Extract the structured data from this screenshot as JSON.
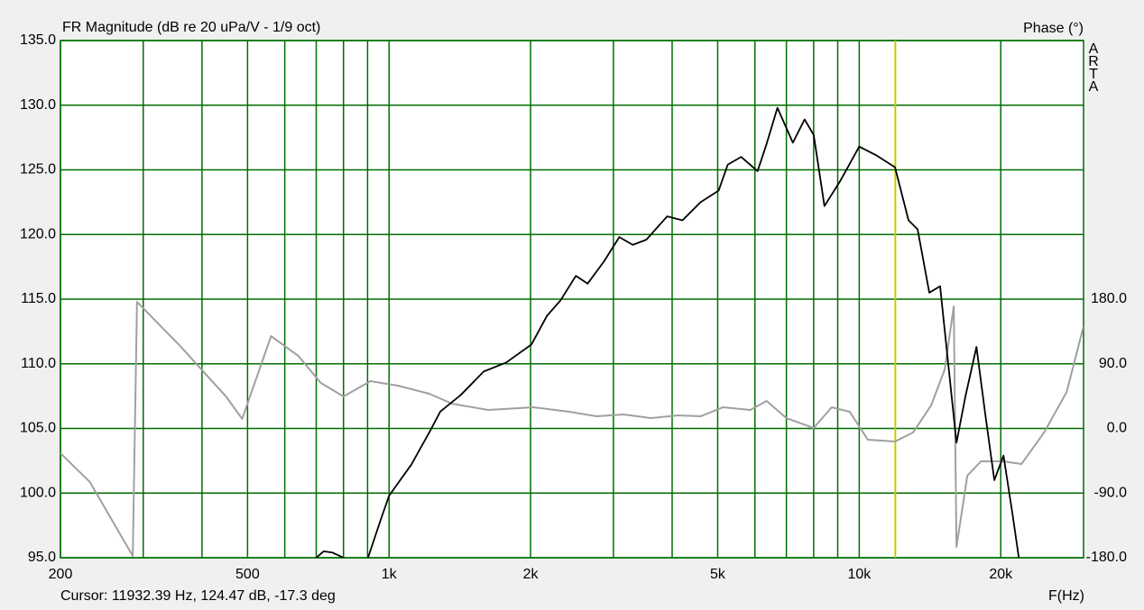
{
  "chart_data": {
    "type": "line",
    "title": "FR Magnitude (dB re 20 uPa/V - 1/9 oct)",
    "y2_label": "Phase (°)",
    "x_label": "F(Hz)",
    "watermark": "ARTA",
    "cursor_text": "Cursor: 11932.39 Hz, 124.47 dB, -17.3 deg",
    "cursor_x": 11932.39,
    "cursor_color": "#c8c800",
    "x_log": true,
    "grid": true,
    "grid_color": "#006e00",
    "xlim": [
      200,
      30000
    ],
    "xticks": [
      {
        "value": 200,
        "label": "200"
      },
      {
        "value": 300,
        "label": null
      },
      {
        "value": 400,
        "label": null
      },
      {
        "value": 500,
        "label": "500"
      },
      {
        "value": 600,
        "label": null
      },
      {
        "value": 700,
        "label": null
      },
      {
        "value": 800,
        "label": null
      },
      {
        "value": 900,
        "label": null
      },
      {
        "value": 1000,
        "label": "1k"
      },
      {
        "value": 2000,
        "label": "2k"
      },
      {
        "value": 3000,
        "label": null
      },
      {
        "value": 4000,
        "label": null
      },
      {
        "value": 5000,
        "label": "5k"
      },
      {
        "value": 6000,
        "label": null
      },
      {
        "value": 7000,
        "label": null
      },
      {
        "value": 8000,
        "label": null
      },
      {
        "value": 9000,
        "label": null
      },
      {
        "value": 10000,
        "label": "10k"
      },
      {
        "value": 20000,
        "label": "20k"
      }
    ],
    "ylim": [
      95,
      135
    ],
    "yticks": [
      {
        "value": 95,
        "label": "95.0"
      },
      {
        "value": 100,
        "label": "100.0"
      },
      {
        "value": 105,
        "label": "105.0"
      },
      {
        "value": 110,
        "label": "110.0"
      },
      {
        "value": 115,
        "label": "115.0"
      },
      {
        "value": 120,
        "label": "120.0"
      },
      {
        "value": 125,
        "label": "125.0"
      },
      {
        "value": 130,
        "label": "130.0"
      },
      {
        "value": 135,
        "label": "135.0"
      }
    ],
    "y2lim": [
      -180,
      540
    ],
    "y2ticks": [
      {
        "value": -180,
        "label": "-180.0"
      },
      {
        "value": -90,
        "label": "-90.0"
      },
      {
        "value": 0,
        "label": "0.0"
      },
      {
        "value": 90,
        "label": "90.0"
      },
      {
        "value": 180,
        "label": "180.0"
      }
    ],
    "series": [
      {
        "name": "Magnitude",
        "color": "#000000",
        "x": [
          700,
          726,
          758,
          800,
          850,
          902,
          955,
          1000,
          1115,
          1218,
          1285,
          1422,
          1589,
          1775,
          2009,
          2166,
          2315,
          2496,
          2644,
          2863,
          3088,
          3299,
          3526,
          3904,
          4208,
          4598,
          5024,
          5252,
          5610,
          6078,
          6352,
          6699,
          7226,
          7653,
          8001,
          8434,
          9132,
          10000,
          10901,
          11914,
          12732,
          13310,
          14094,
          14860,
          16101,
          16827,
          17757,
          18540,
          19380,
          20270,
          21180,
          21850
        ],
        "values": [
          95.0,
          95.5,
          95.4,
          95.0,
          null,
          95.0,
          97.7,
          99.8,
          102.2,
          104.7,
          106.3,
          107.6,
          109.4,
          110.1,
          111.5,
          113.7,
          114.9,
          116.8,
          116.2,
          117.9,
          119.8,
          119.2,
          119.6,
          121.4,
          121.1,
          122.5,
          123.4,
          125.4,
          126.0,
          124.9,
          127.0,
          129.8,
          127.1,
          128.9,
          127.7,
          122.2,
          124.2,
          126.8,
          126.1,
          125.2,
          121.1,
          120.4,
          115.5,
          116.0,
          103.9,
          107.5,
          111.3,
          106.1,
          101.0,
          102.9,
          98.4,
          95.0
        ]
      },
      {
        "name": "Phase",
        "color": "#a0a0a0",
        "axis": "y2",
        "x": [
          200,
          231,
          285,
          291,
          361,
          450,
          487,
          514,
          561,
          641,
          716,
          800,
          913,
          1043,
          1218,
          1361,
          1624,
          2027,
          2420,
          2763,
          3156,
          3606,
          4118,
          4598,
          5136,
          5866,
          6352,
          7000,
          8001,
          8738,
          9547,
          10433,
          11914,
          13019,
          14220,
          15201,
          15886,
          16101,
          16980,
          18148,
          20270,
          22140,
          24730,
          27620,
          30000
        ],
        "values": [
          -34.5,
          -74.6,
          -177.5,
          176.2,
          113.5,
          44.5,
          13.2,
          57.1,
          128.6,
          101.0,
          63.4,
          44.5,
          65.9,
          59.6,
          48.3,
          34.5,
          25.7,
          29.5,
          23.2,
          16.9,
          19.5,
          14.4,
          18.2,
          16.9,
          29.5,
          25.7,
          38.3,
          14.4,
          0.6,
          29.5,
          23.2,
          -15.7,
          -18.2,
          -5.6,
          32.0,
          82.2,
          170.0,
          -164.9,
          -65.8,
          -45.8,
          -45.8,
          -49.5,
          -5.6,
          50.8,
          142.4
        ]
      }
    ]
  }
}
